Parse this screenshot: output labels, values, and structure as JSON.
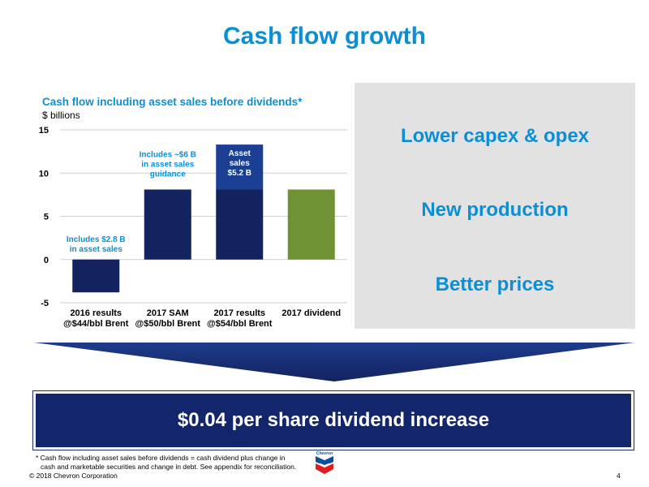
{
  "slide": {
    "title": "Cash flow growth",
    "benefits": [
      "Lower capex & opex",
      "New production",
      "Better prices"
    ],
    "result": "$0.04 per share dividend increase",
    "footnote_line1": "* Cash flow including asset sales before dividends = cash dividend plus change in",
    "footnote_line2": "cash and marketable securities and change in debt. See appendix for reconciliation.",
    "copyright": "© 2018 Chevron Corporation",
    "page_number": "4",
    "logo_text": "Chevron"
  },
  "chart_data": {
    "type": "bar",
    "title": "Cash flow including asset sales before dividends*",
    "unit_label": "$ billions",
    "ylim": [
      -5,
      15
    ],
    "yticks": [
      15,
      10,
      5,
      0,
      -5
    ],
    "grid": true,
    "categories": [
      {
        "line1": "2016 results",
        "line2": "@$44/bbl Brent"
      },
      {
        "line1": "2017 SAM",
        "line2": "@$50/bbl Brent"
      },
      {
        "line1": "2017 results",
        "line2": "@$54/bbl Brent"
      },
      {
        "line1": "2017 dividend",
        "line2": ""
      }
    ],
    "bars": [
      {
        "value": -3.8,
        "color": "#13235f"
      },
      {
        "value": 8.1,
        "color": "#13235f"
      },
      {
        "value": 8.1,
        "color": "#13235f",
        "stack_value": 5.2,
        "stack_color": "#1b3f93"
      },
      {
        "value": 8.1,
        "color": "#6f9235"
      }
    ],
    "annotations": [
      {
        "lines": [
          "Includes $2.8 B",
          "in asset sales"
        ],
        "color": "#0b8fd4"
      },
      {
        "lines": [
          "Includes ~$6 B",
          "in asset sales",
          "guidance"
        ],
        "color": "#0b8fd4"
      },
      {
        "lines": [
          "Asset",
          "sales",
          "$5.2 B"
        ],
        "color": "#ffffff"
      }
    ],
    "colors": {
      "bar_dark": "#13235f",
      "bar_stack": "#1b3f93",
      "bar_dividend": "#6f9235",
      "accent": "#0b8fd4"
    }
  }
}
